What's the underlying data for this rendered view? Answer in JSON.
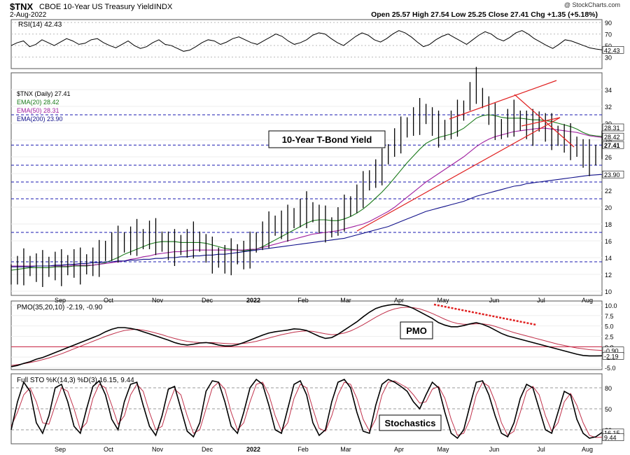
{
  "header": {
    "symbol": "$TNX",
    "name": "CBOE 10-Year US Treasury Yield",
    "exchange": "INDX",
    "date": "2-Aug-2022",
    "copyright": "@ StockCharts.com",
    "ohlc_text": "Open 25.57  High 27.54  Low 25.25  Close 27.41  Chg +1.35 (+5.18%)"
  },
  "colors": {
    "price": "#000000",
    "ema20": "#1a7a1a",
    "ema50": "#a020a0",
    "ema200": "#10108a",
    "signal": "#c0304a",
    "trendline": "#e02020",
    "grid_dash": "#1a1ab0",
    "zero_line": "#c81e3c"
  },
  "chart_data": [
    {
      "type": "line",
      "title": "RSI(14) 42.43",
      "y_ticks": [
        "90",
        "70",
        "50",
        "30"
      ],
      "ylim": [
        10,
        95
      ],
      "ref_lines": [
        70,
        50,
        30
      ],
      "last_value_label": "42.43",
      "series": [
        {
          "name": "RSI(14)",
          "values": [
            50,
            55,
            58,
            48,
            52,
            60,
            55,
            50,
            56,
            62,
            58,
            52,
            54,
            60,
            62,
            55,
            50,
            46,
            52,
            58,
            50,
            45,
            48,
            55,
            60,
            52,
            50,
            45,
            40,
            42,
            48,
            55,
            60,
            58,
            52,
            56,
            62,
            65,
            60,
            55,
            52,
            58,
            64,
            70,
            66,
            58,
            52,
            55,
            60,
            68,
            72,
            70,
            62,
            55,
            50,
            58,
            66,
            72,
            68,
            60,
            56,
            62,
            70,
            76,
            72,
            65,
            56,
            48,
            52,
            60,
            66,
            70,
            64,
            58,
            52,
            60,
            68,
            74,
            70,
            62,
            58,
            64,
            72,
            76,
            70,
            62,
            56,
            50,
            45,
            52,
            60,
            58,
            54,
            50,
            46,
            44,
            42.43
          ]
        }
      ]
    },
    {
      "type": "line",
      "title": "$TNX (Daily) 27.41",
      "legend": [
        "$TNX (Daily) 27.41",
        "EMA(20) 28.42",
        "EMA(50) 28.31",
        "EMA(200) 23.90"
      ],
      "annotation": "10-Year T-Bond Yield",
      "x_ticks": [
        "Sep",
        "Oct",
        "Nov",
        "Dec",
        "2022",
        "Feb",
        "Mar",
        "Apr",
        "May",
        "Jun",
        "Jul",
        "Aug"
      ],
      "y_ticks": [
        "34",
        "32",
        "30",
        "28",
        "26",
        "24",
        "22",
        "20",
        "18",
        "16",
        "14",
        "12",
        "10"
      ],
      "ylim": [
        9.5,
        36
      ],
      "value_labels": [
        "28.31",
        "28.42",
        "27.41",
        "23.90"
      ],
      "series": [
        {
          "name": "$TNX (Daily)",
          "values": [
            12.0,
            12.5,
            12.9,
            13.0,
            12.8,
            12.7,
            12.9,
            13.0,
            12.8,
            13.1,
            13.3,
            13.0,
            13.2,
            13.5,
            13.9,
            14.8,
            15.3,
            15.6,
            15.8,
            16.0,
            16.4,
            16.2,
            16.7,
            16.5,
            15.9,
            15.4,
            15.2,
            15.5,
            15.7,
            16.1,
            15.9,
            15.1,
            14.3,
            14.0,
            13.8,
            14.1,
            14.4,
            14.3,
            14.9,
            15.8,
            16.6,
            17.3,
            17.8,
            17.9,
            18.1,
            18.7,
            19.3,
            19.7,
            19.4,
            18.6,
            18.0,
            17.6,
            18.3,
            19.3,
            20.1,
            21.0,
            22.1,
            23.2,
            24.0,
            24.8,
            26.3,
            27.7,
            28.6,
            29.5,
            30.2,
            30.8,
            31.1,
            30.2,
            29.3,
            29.2,
            29.8,
            30.6,
            31.5,
            33.2,
            34.5,
            33.0,
            31.5,
            30.2,
            29.3,
            30.0,
            30.6,
            30.3,
            29.8,
            29.5,
            30.2,
            29.5,
            29.0,
            28.5,
            28.2,
            27.8,
            27.2,
            26.4,
            25.9,
            26.2,
            27.41
          ]
        },
        {
          "name": "EMA(20)",
          "values": [
            12.5,
            12.6,
            12.7,
            12.8,
            12.8,
            12.8,
            12.8,
            12.9,
            12.9,
            12.9,
            13.0,
            13.0,
            13.0,
            13.1,
            13.2,
            13.4,
            13.7,
            14.0,
            14.4,
            14.7,
            15.0,
            15.3,
            15.6,
            15.8,
            15.9,
            15.9,
            15.9,
            15.8,
            15.8,
            15.8,
            15.8,
            15.7,
            15.5,
            15.3,
            15.1,
            15.0,
            14.9,
            14.8,
            14.9,
            15.0,
            15.3,
            15.7,
            16.1,
            16.5,
            16.9,
            17.3,
            17.7,
            18.1,
            18.4,
            18.5,
            18.5,
            18.4,
            18.4,
            18.6,
            18.9,
            19.3,
            19.8,
            20.4,
            21.1,
            21.8,
            22.6,
            23.5,
            24.4,
            25.3,
            26.1,
            26.9,
            27.6,
            28.0,
            28.3,
            28.5,
            28.7,
            29.0,
            29.4,
            30.0,
            30.6,
            30.9,
            31.0,
            30.9,
            30.7,
            30.6,
            30.6,
            30.6,
            30.5,
            30.4,
            30.4,
            30.3,
            30.2,
            30.0,
            29.8,
            29.6,
            29.3,
            28.9,
            28.6,
            28.5,
            28.42
          ]
        },
        {
          "name": "EMA(50)",
          "values": [
            13.0,
            13.0,
            13.0,
            13.0,
            13.0,
            13.0,
            13.0,
            13.0,
            13.0,
            13.0,
            13.1,
            13.1,
            13.1,
            13.1,
            13.2,
            13.3,
            13.4,
            13.5,
            13.6,
            13.8,
            13.9,
            14.1,
            14.2,
            14.4,
            14.5,
            14.6,
            14.7,
            14.7,
            14.8,
            14.9,
            14.9,
            14.9,
            14.9,
            14.9,
            14.9,
            14.9,
            14.9,
            14.9,
            15.0,
            15.0,
            15.2,
            15.4,
            15.6,
            15.8,
            16.0,
            16.2,
            16.4,
            16.6,
            16.8,
            16.9,
            17.0,
            17.1,
            17.2,
            17.4,
            17.6,
            17.8,
            18.0,
            18.3,
            18.7,
            19.1,
            19.5,
            20.0,
            20.6,
            21.2,
            21.8,
            22.4,
            23.0,
            23.5,
            24.0,
            24.5,
            25.0,
            25.5,
            26.0,
            26.6,
            27.2,
            27.7,
            28.1,
            28.4,
            28.6,
            28.8,
            29.0,
            29.1,
            29.2,
            29.3,
            29.4,
            29.4,
            29.3,
            29.2,
            29.1,
            29.0,
            28.9,
            28.7,
            28.5,
            28.4,
            28.31
          ]
        },
        {
          "name": "EMA(200)",
          "values": [
            12.9,
            12.9,
            12.9,
            12.9,
            13.0,
            13.0,
            13.0,
            13.1,
            13.1,
            13.2,
            13.2,
            13.3,
            13.3,
            13.4,
            13.4,
            13.5,
            13.5,
            13.6,
            13.6,
            13.7,
            13.7,
            13.8,
            13.8,
            13.9,
            13.9,
            14.0,
            14.0,
            14.1,
            14.1,
            14.2,
            14.2,
            14.3,
            14.3,
            14.4,
            14.4,
            14.5,
            14.6,
            14.7,
            14.8,
            14.9,
            15.0,
            15.1,
            15.2,
            15.3,
            15.4,
            15.5,
            15.6,
            15.7,
            15.8,
            15.9,
            16.0,
            16.1,
            16.2,
            16.3,
            16.5,
            16.7,
            16.9,
            17.1,
            17.3,
            17.5,
            17.7,
            18.0,
            18.3,
            18.6,
            18.9,
            19.2,
            19.5,
            19.7,
            19.9,
            20.1,
            20.3,
            20.5,
            20.7,
            21.0,
            21.3,
            21.5,
            21.7,
            21.9,
            22.1,
            22.3,
            22.5,
            22.6,
            22.8,
            22.9,
            23.0,
            23.1,
            23.2,
            23.3,
            23.4,
            23.5,
            23.6,
            23.7,
            23.8,
            23.85,
            23.9
          ]
        }
      ]
    },
    {
      "type": "line",
      "title": "PMO(35,20,10) -2.19, -0.90",
      "annotation": "PMO",
      "y_ticks": [
        "10.0",
        "7.5",
        "5.0",
        "2.5",
        "0.0",
        "-2.5",
        "-5.0"
      ],
      "ylim": [
        -5.5,
        11
      ],
      "value_labels": [
        "-0.90",
        "-2.19"
      ],
      "series": [
        {
          "name": "PMO",
          "values": [
            -4.8,
            -4.5,
            -4.0,
            -3.6,
            -3.0,
            -2.6,
            -2.0,
            -1.4,
            -0.8,
            -0.2,
            0.4,
            1.0,
            1.6,
            2.2,
            2.8,
            3.6,
            4.2,
            4.6,
            4.6,
            4.4,
            4.1,
            3.6,
            3.1,
            2.6,
            2.1,
            1.6,
            1.0,
            0.6,
            0.4,
            0.6,
            0.9,
            1.0,
            0.8,
            0.4,
            0.2,
            0.2,
            0.5,
            1.0,
            1.6,
            2.2,
            2.8,
            3.3,
            3.6,
            3.8,
            4.0,
            4.3,
            4.2,
            3.9,
            3.2,
            2.5,
            2.0,
            2.2,
            3.0,
            4.0,
            5.0,
            6.0,
            7.2,
            8.3,
            9.2,
            9.7,
            10.0,
            10.2,
            10.1,
            9.8,
            9.2,
            8.4,
            7.6,
            6.8,
            5.8,
            5.2,
            4.8,
            4.8,
            5.1,
            5.5,
            5.8,
            5.4,
            4.8,
            4.0,
            3.2,
            2.6,
            2.2,
            1.8,
            1.4,
            1.0,
            0.6,
            0.2,
            -0.2,
            -0.6,
            -1.0,
            -1.4,
            -1.8,
            -2.1,
            -2.2,
            -2.2,
            -2.19
          ]
        },
        {
          "name": "Signal",
          "values": [
            -4.5,
            -4.3,
            -4.1,
            -3.8,
            -3.5,
            -3.1,
            -2.7,
            -2.2,
            -1.7,
            -1.1,
            -0.5,
            0.1,
            0.7,
            1.3,
            1.9,
            2.5,
            3.0,
            3.5,
            3.9,
            4.1,
            4.2,
            4.0,
            3.7,
            3.3,
            2.9,
            2.4,
            2.0,
            1.6,
            1.3,
            1.1,
            1.0,
            1.0,
            1.0,
            0.9,
            0.8,
            0.7,
            0.7,
            0.8,
            1.0,
            1.3,
            1.7,
            2.1,
            2.5,
            2.9,
            3.2,
            3.5,
            3.7,
            3.8,
            3.7,
            3.4,
            3.1,
            2.9,
            3.0,
            3.3,
            3.8,
            4.5,
            5.3,
            6.2,
            7.1,
            7.9,
            8.6,
            9.1,
            9.4,
            9.5,
            9.4,
            9.1,
            8.6,
            8.0,
            7.3,
            6.6,
            6.0,
            5.6,
            5.4,
            5.4,
            5.5,
            5.5,
            5.3,
            4.9,
            4.4,
            3.9,
            3.4,
            3.0,
            2.6,
            2.2,
            1.8,
            1.4,
            1.0,
            0.6,
            0.3,
            0.0,
            -0.3,
            -0.5,
            -0.7,
            -0.8,
            -0.9
          ]
        }
      ]
    },
    {
      "type": "line",
      "title": "Full STO %K(14,3) %D(3) 16.15, 9.44",
      "annotation": "Stochastics",
      "x_ticks": [
        "Sep",
        "Oct",
        "Nov",
        "Dec",
        "2022",
        "Feb",
        "Mar",
        "Apr",
        "May",
        "Jun",
        "Jul",
        "Aug"
      ],
      "y_ticks": [
        "80",
        "50",
        "20"
      ],
      "ylim": [
        0,
        100
      ],
      "value_labels": [
        "16.15",
        "9.44"
      ],
      "series": [
        {
          "name": "%K",
          "values": [
            20,
            60,
            88,
            75,
            30,
            15,
            40,
            80,
            85,
            60,
            25,
            15,
            50,
            82,
            90,
            70,
            35,
            20,
            60,
            85,
            88,
            55,
            25,
            12,
            40,
            78,
            82,
            50,
            18,
            10,
            30,
            75,
            90,
            88,
            60,
            25,
            15,
            45,
            80,
            92,
            85,
            55,
            20,
            15,
            50,
            85,
            90,
            70,
            30,
            12,
            20,
            60,
            88,
            92,
            80,
            45,
            18,
            15,
            55,
            85,
            92,
            88,
            82,
            75,
            60,
            50,
            70,
            88,
            80,
            45,
            15,
            8,
            20,
            55,
            88,
            90,
            70,
            40,
            15,
            10,
            30,
            65,
            85,
            80,
            50,
            20,
            15,
            45,
            75,
            70,
            35,
            15,
            8,
            10,
            16.15
          ]
        },
        {
          "name": "%D",
          "values": [
            25,
            45,
            70,
            80,
            60,
            30,
            28,
            55,
            80,
            75,
            50,
            20,
            30,
            65,
            85,
            80,
            55,
            28,
            40,
            70,
            85,
            75,
            45,
            20,
            25,
            55,
            78,
            70,
            40,
            15,
            20,
            50,
            80,
            88,
            78,
            45,
            20,
            30,
            60,
            85,
            88,
            70,
            40,
            18,
            30,
            65,
            85,
            80,
            50,
            22,
            18,
            40,
            70,
            88,
            85,
            65,
            35,
            18,
            35,
            70,
            88,
            90,
            85,
            80,
            70,
            58,
            60,
            78,
            82,
            65,
            35,
            12,
            15,
            35,
            70,
            88,
            82,
            60,
            30,
            12,
            18,
            45,
            75,
            82,
            70,
            40,
            18,
            30,
            60,
            72,
            55,
            30,
            12,
            9,
            9.44
          ]
        }
      ]
    }
  ]
}
